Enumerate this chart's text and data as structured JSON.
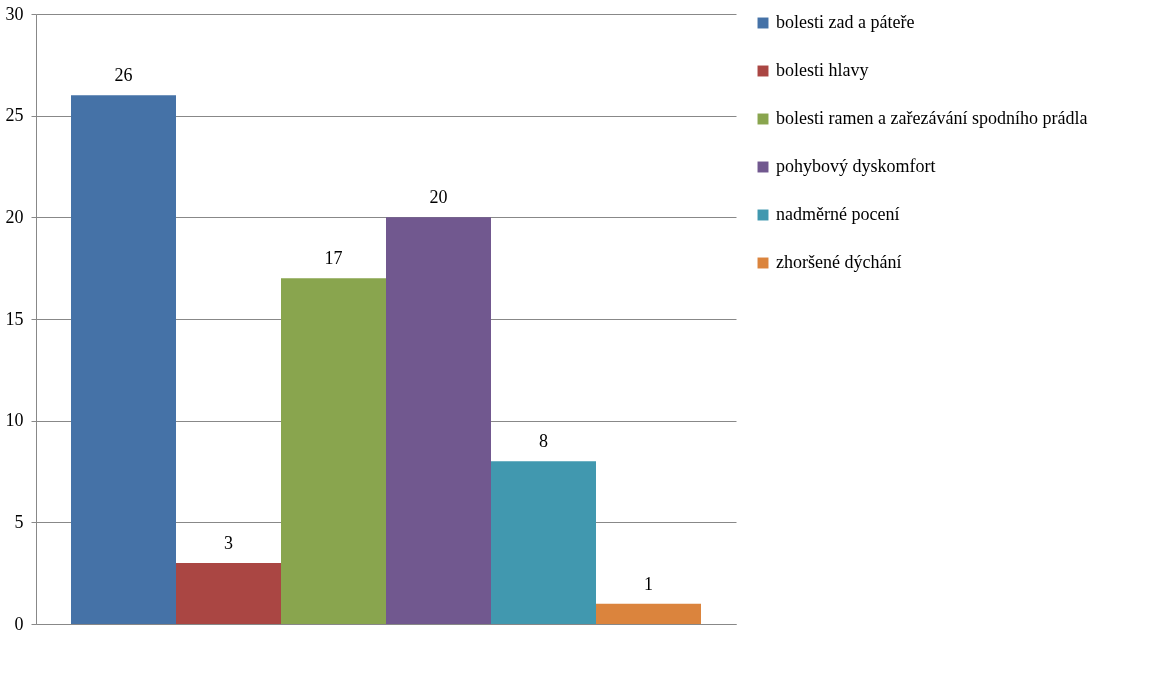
{
  "chart_data": {
    "type": "bar",
    "categories": [
      null
    ],
    "series": [
      {
        "name": "bolesti zad a páteře",
        "color": "#4572a7",
        "values": [
          26
        ]
      },
      {
        "name": "bolesti hlavy",
        "color": "#aa4643",
        "values": [
          3
        ]
      },
      {
        "name": "bolesti ramen a zařezávání spodního prádla",
        "color": "#89a54e",
        "values": [
          17
        ]
      },
      {
        "name": "pohybový dyskomfort",
        "color": "#71588f",
        "values": [
          20
        ]
      },
      {
        "name": "nadměrné pocení",
        "color": "#4198af",
        "values": [
          8
        ]
      },
      {
        "name": "zhoršené dýchání",
        "color": "#db843d",
        "values": [
          1
        ]
      }
    ],
    "ylim": [
      0,
      30
    ],
    "yticks": [
      0,
      5,
      10,
      15,
      20,
      25,
      30
    ],
    "grid": "y",
    "legend": "right",
    "data_labels": true
  }
}
